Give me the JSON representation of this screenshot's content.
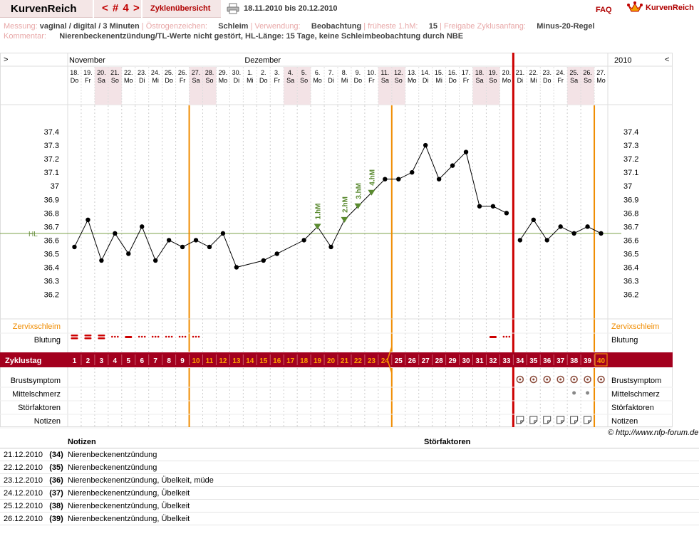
{
  "header": {
    "brand": "KurvenReich",
    "cycle_label": "< # 4 >",
    "overview_link": "Zyklenübersicht",
    "date_range": "18.11.2010 bis 20.12.2010",
    "faq": "FAQ",
    "brand_right": "KurvenReich"
  },
  "meta": {
    "messung_label": "Messung:",
    "messung_value": "vaginal / digital / 3 Minuten",
    "oestrogen_label": "Östrogenzeichen:",
    "oestrogen_value": "Schleim",
    "verwendung_label": "Verwendung:",
    "verwendung_value": "Beobachtung",
    "hm_label": "früheste 1.hM:",
    "hm_value": "15",
    "freigabe_label": "Freigabe Zyklusanfang:",
    "freigabe_value": "Minus-20-Regel",
    "kommentar_label": "Kommentar:",
    "kommentar_value": "Nierenbeckenentzündung/TL-Werte nicht gestört, HL-Länge: 15 Tage, keine Schleimbeobachtung durch NBE"
  },
  "nav": {
    "prev": ">",
    "next": "<",
    "year": "2010"
  },
  "chart_data": {
    "type": "line",
    "months": [
      {
        "label": "November",
        "start_index": 0
      },
      {
        "label": "Dezember",
        "start_index": 13
      }
    ],
    "days": [
      "18.",
      "19.",
      "20.",
      "21.",
      "22.",
      "23.",
      "24.",
      "25.",
      "26.",
      "27.",
      "28.",
      "29.",
      "30.",
      "1.",
      "2.",
      "3.",
      "4.",
      "5.",
      "6.",
      "7.",
      "8.",
      "9.",
      "10.",
      "11.",
      "12.",
      "13.",
      "14.",
      "15.",
      "16.",
      "17.",
      "18.",
      "19.",
      "20.",
      "21.",
      "22.",
      "23.",
      "24.",
      "25.",
      "26.",
      "27."
    ],
    "weekdays": [
      "Do",
      "Fr",
      "Sa",
      "So",
      "Mo",
      "Di",
      "Mi",
      "Do",
      "Fr",
      "Sa",
      "So",
      "Mo",
      "Di",
      "Mi",
      "Do",
      "Fr",
      "Sa",
      "So",
      "Mo",
      "Di",
      "Mi",
      "Do",
      "Fr",
      "Sa",
      "So",
      "Mo",
      "Di",
      "Mi",
      "Do",
      "Fr",
      "Sa",
      "So",
      "Mo",
      "Di",
      "Mi",
      "Do",
      "Fr",
      "Sa",
      "So",
      "Mo"
    ],
    "weekend_indices": [
      2,
      3,
      9,
      10,
      16,
      17,
      23,
      24,
      30,
      31,
      37,
      38
    ],
    "cycle_days": [
      1,
      2,
      3,
      4,
      5,
      6,
      7,
      8,
      9,
      10,
      11,
      12,
      13,
      14,
      15,
      16,
      17,
      18,
      19,
      20,
      21,
      22,
      23,
      24,
      25,
      26,
      27,
      28,
      29,
      30,
      31,
      32,
      33,
      34,
      35,
      36,
      37,
      38,
      39,
      40
    ],
    "highlight_day_indices": [
      9,
      10,
      11,
      12,
      13,
      14,
      15,
      16,
      17,
      18,
      19,
      20,
      21,
      22,
      23,
      39
    ],
    "temperatures": [
      36.55,
      36.75,
      36.45,
      36.65,
      36.5,
      36.7,
      36.45,
      36.6,
      36.55,
      36.6,
      36.55,
      36.65,
      36.4,
      null,
      36.45,
      36.5,
      null,
      36.6,
      36.7,
      36.55,
      36.75,
      36.85,
      36.95,
      37.05,
      37.05,
      37.1,
      37.3,
      37.05,
      37.15,
      37.25,
      36.85,
      36.85,
      36.8,
      36.6,
      36.75,
      36.6,
      36.7,
      36.65,
      36.7,
      36.65
    ],
    "line_breaks_after": [
      32
    ],
    "y_ticks": [
      "37.4",
      "37.3",
      "37.2",
      "37.1",
      "37",
      "36.9",
      "36.8",
      "36.7",
      "36.6",
      "36.5",
      "36.4",
      "36.3",
      "36.2"
    ],
    "ylim": [
      36.1,
      37.5
    ],
    "hl_value": 36.65,
    "hl_label": "HL",
    "hm_markers": [
      {
        "index": 18,
        "label": "1.hM"
      },
      {
        "index": 20,
        "label": "2.hM"
      },
      {
        "index": 21,
        "label": "3.hM"
      },
      {
        "index": 22,
        "label": "4.hM"
      }
    ],
    "orange_line_after_indices": [
      8,
      23,
      38
    ],
    "red_line_after_index": 32,
    "rows": {
      "zervix": "Zervixschleim",
      "blutung": "Blutung",
      "zyklustag": "Zyklustag",
      "brust": "Brustsymptom",
      "mittel": "Mittelschmerz",
      "stoer": "Störfaktoren",
      "notizen": "Notizen"
    },
    "bleeding": [
      "strong",
      "strong",
      "strong",
      "light",
      "medium",
      "light",
      "light",
      "light",
      "light",
      "light",
      null,
      null,
      null,
      null,
      null,
      null,
      null,
      null,
      null,
      null,
      null,
      null,
      null,
      null,
      null,
      null,
      null,
      null,
      null,
      null,
      null,
      "medium",
      "light",
      null,
      null,
      null,
      null,
      null,
      null,
      null
    ],
    "breast_indices": [
      33,
      34,
      35,
      36,
      37,
      38,
      39
    ],
    "mittelschmerz_indices": [
      37,
      38
    ],
    "notes_indices": [
      33,
      34,
      35,
      36,
      37,
      38
    ]
  },
  "copyright": "© http://www.nfp-forum.de",
  "notes_table": {
    "headers": {
      "notizen": "Notizen",
      "stoerfaktoren": "Störfaktoren"
    },
    "rows": [
      {
        "date": "21.12.2010",
        "day": "(34)",
        "note": "Nierenbeckenentzündung"
      },
      {
        "date": "22.12.2010",
        "day": "(35)",
        "note": "Nierenbeckenentzündung"
      },
      {
        "date": "23.12.2010",
        "day": "(36)",
        "note": "Nierenbeckenentzündung, Übelkeit, müde"
      },
      {
        "date": "24.12.2010",
        "day": "(37)",
        "note": "Nierenbeckenentzündung, Übelkeit"
      },
      {
        "date": "25.12.2010",
        "day": "(38)",
        "note": "Nierenbeckenentzündung, Übelkeit"
      },
      {
        "date": "26.12.2010",
        "day": "(39)",
        "note": "Nierenbeckenentzündung, Übelkeit"
      }
    ]
  }
}
